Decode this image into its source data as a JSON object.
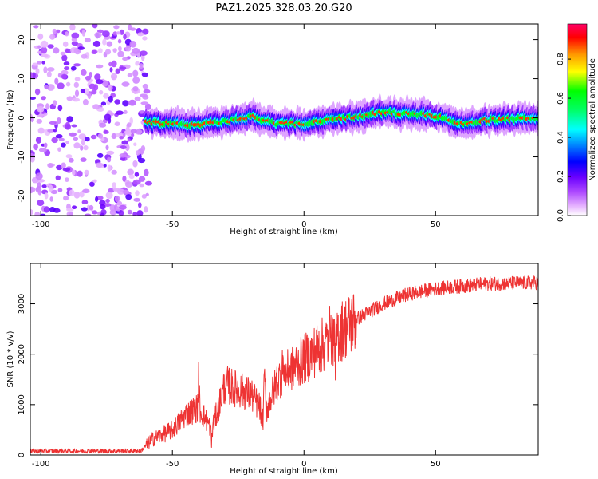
{
  "title": "PAZ1.2025.328.03.20.G20",
  "chart_data": [
    {
      "type": "heatmap",
      "xlabel": "Height of straight line (km)",
      "ylabel": "Frequency (Hz)",
      "xlim": [
        -104,
        89
      ],
      "ylim": [
        -25,
        24
      ],
      "xticks": [
        -100,
        -50,
        0,
        50
      ],
      "yticks": [
        -20,
        -10,
        0,
        10,
        20
      ],
      "colorbar": {
        "label": "Normalized spectral amplitude",
        "range": [
          0,
          0.98
        ],
        "ticks": [
          "0.0",
          "0.2",
          "0.4",
          "0.6",
          "0.8"
        ]
      },
      "noise_region_x": [
        -104,
        -59
      ],
      "signal_region_x": [
        -60,
        89
      ],
      "signal_band_center_hz": [
        [
          -60,
          -1.2
        ],
        [
          -40,
          -1.8
        ],
        [
          -25,
          -0.5
        ],
        [
          -20,
          0.5
        ],
        [
          -15,
          -0.8
        ],
        [
          -10,
          -1.5
        ],
        [
          0,
          -1.5
        ],
        [
          10,
          -0.5
        ],
        [
          20,
          0.3
        ],
        [
          30,
          1.5
        ],
        [
          40,
          1.0
        ],
        [
          50,
          0.5
        ],
        [
          60,
          -1.5
        ],
        [
          70,
          -0.5
        ],
        [
          89,
          0.0
        ]
      ]
    },
    {
      "type": "line",
      "xlabel": "Height of straight line (km)",
      "ylabel": "SNR (10 * v/v)",
      "xlim": [
        -104,
        89
      ],
      "ylim": [
        0,
        3800
      ],
      "xticks": [
        -100,
        -50,
        0,
        50
      ],
      "yticks": [
        0,
        1000,
        2000,
        3000
      ],
      "series_color": "#ee3333",
      "trend": [
        [
          -104,
          80
        ],
        [
          -80,
          80
        ],
        [
          -62,
          80
        ],
        [
          -58,
          300
        ],
        [
          -50,
          500
        ],
        [
          -45,
          800
        ],
        [
          -40,
          950
        ],
        [
          -35,
          500
        ],
        [
          -30,
          1400
        ],
        [
          -25,
          1300
        ],
        [
          -20,
          1200
        ],
        [
          -15,
          800
        ],
        [
          -10,
          1500
        ],
        [
          -5,
          1700
        ],
        [
          0,
          1900
        ],
        [
          10,
          2300
        ],
        [
          20,
          2700
        ],
        [
          30,
          3000
        ],
        [
          40,
          3200
        ],
        [
          50,
          3300
        ],
        [
          60,
          3350
        ],
        [
          70,
          3400
        ],
        [
          89,
          3420
        ]
      ]
    }
  ]
}
